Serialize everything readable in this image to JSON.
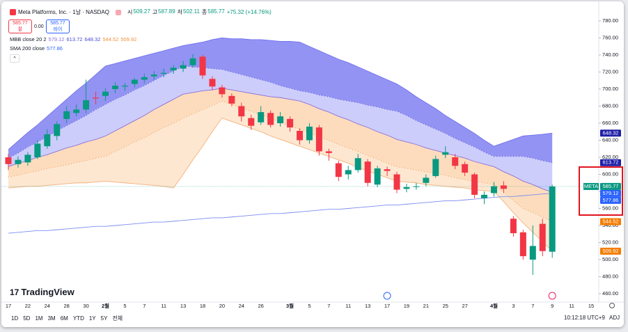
{
  "header": {
    "title": "Meta Platforms, Inc. · 1날 · NASDAQ",
    "ohlc_labels": [
      "시",
      "고",
      "저",
      "종"
    ],
    "change": "+75.32 (+14.76%)",
    "sell_label": "팔",
    "spread": "0.00",
    "buy_label": "바이",
    "mbb_label": "MBB close 20 2",
    "sma_label": "SMA 200 close",
    "ticker": "META"
  },
  "footer": {
    "brand": "TradingView",
    "timeframes": [
      "1D",
      "5D",
      "1M",
      "3M",
      "6M",
      "YTD",
      "1Y",
      "5Y",
      "전체"
    ],
    "clock": "10:12:18 UTC+9",
    "adj": "ADJ"
  },
  "chart_data": {
    "type": "candlestick",
    "categories": [
      "17",
      null,
      "22",
      null,
      "24",
      null,
      "28",
      null,
      "30",
      null,
      "2월",
      null,
      "5",
      null,
      "7",
      null,
      "11",
      null,
      "13",
      null,
      "18",
      null,
      "20",
      null,
      "24",
      null,
      "26",
      null,
      null,
      "3월",
      null,
      "5",
      null,
      "7",
      null,
      "11",
      null,
      "13",
      null,
      "17",
      null,
      "19",
      null,
      "21",
      null,
      "25",
      null,
      "27",
      null,
      null,
      "4월",
      null,
      "3",
      null,
      "7",
      null,
      "9"
    ],
    "future_ticks": [
      "11",
      "15"
    ],
    "open": [
      620,
      612,
      614,
      620,
      633,
      645,
      665,
      672,
      676,
      690,
      692,
      700,
      703,
      706,
      711,
      715,
      718,
      722,
      724,
      728,
      738,
      712,
      702,
      692,
      680,
      666,
      661,
      672,
      660,
      665,
      651,
      640,
      655,
      627,
      613,
      600,
      605,
      615,
      588,
      606,
      600,
      583,
      586,
      590,
      598,
      623,
      620,
      612,
      600,
      572,
      578,
      587,
      548,
      532,
      500,
      542,
      509.27
    ],
    "high": [
      624,
      621,
      626,
      640,
      653,
      662,
      680,
      682,
      711,
      697,
      701,
      708,
      707,
      713,
      718,
      721,
      724,
      728,
      733,
      741,
      740,
      715,
      705,
      695,
      684,
      670,
      680,
      675,
      673,
      668,
      654,
      660,
      658,
      630,
      616,
      610,
      624,
      618,
      610,
      609,
      603,
      589,
      590,
      600,
      622,
      633,
      624,
      615,
      602,
      580,
      591,
      592,
      551,
      535,
      540,
      548,
      587.89
    ],
    "low": [
      605,
      608,
      610,
      618,
      630,
      640,
      660,
      668,
      672,
      682,
      686,
      695,
      698,
      702,
      707,
      711,
      714,
      718,
      720,
      725,
      712,
      699,
      690,
      680,
      662,
      652,
      658,
      655,
      656,
      650,
      635,
      636,
      622,
      616,
      592,
      594,
      602,
      586,
      585,
      598,
      578,
      579,
      582,
      586,
      596,
      619,
      606,
      598,
      572,
      565,
      574,
      578,
      527,
      500,
      482,
      504,
      502.11
    ],
    "close": [
      612,
      617,
      623,
      636,
      647,
      659,
      674,
      676,
      687,
      689,
      697,
      704,
      704,
      711,
      714,
      717,
      719,
      725,
      728,
      736,
      716,
      703,
      694,
      683,
      668,
      657,
      673,
      658,
      668,
      655,
      640,
      656,
      627,
      625,
      597,
      605,
      619,
      590,
      607,
      604,
      582,
      585,
      586,
      596,
      618,
      626,
      610,
      602,
      576,
      576,
      586,
      583,
      531,
      504,
      516,
      510,
      585.77
    ],
    "up_color": "#089981",
    "down_color": "#f23645",
    "series": [
      {
        "color": "#7070ee",
        "fill": "#8787f3",
        "values": [
          629,
          639,
          649,
          658,
          668,
          678,
          688,
          698,
          707,
          717,
          727,
          730,
          733,
          736,
          739,
          742,
          745,
          748,
          751,
          753,
          755,
          758,
          760,
          759,
          759,
          758,
          758,
          757,
          756,
          756,
          755,
          750,
          745,
          740,
          735,
          731,
          726,
          721,
          716,
          711,
          706,
          699,
          691,
          684,
          677,
          669,
          662,
          655,
          648,
          640,
          633,
          637,
          641,
          645,
          646,
          647,
          648.32
        ]
      },
      {
        "color": "#4a4ad0",
        "fill": "#c6c8fb",
        "dashed": true,
        "values": [
          619,
          625,
          632,
          638,
          644,
          651,
          657,
          663,
          669,
          676,
          682,
          688,
          693,
          699,
          704,
          710,
          716,
          721,
          727,
          726,
          725,
          724,
          723,
          720,
          717,
          714,
          711,
          708,
          704,
          701,
          698,
          696,
          693,
          691,
          688,
          686,
          684,
          681,
          679,
          676,
          674,
          669,
          663,
          658,
          653,
          648,
          642,
          637,
          632,
          626,
          621,
          621,
          621,
          621,
          619,
          616,
          613.72
        ]
      },
      {
        "color": "#8a6fd8",
        "fill": "#fdd8b6",
        "values": [
          609,
          613,
          616,
          620,
          623,
          627,
          631,
          634,
          638,
          641,
          645,
          651,
          657,
          663,
          669,
          676,
          682,
          688,
          694,
          696,
          698,
          699,
          701,
          699,
          697,
          695,
          693,
          691,
          690,
          688,
          686,
          682,
          677,
          673,
          668,
          664,
          659,
          655,
          650,
          646,
          641,
          638,
          635,
          631,
          628,
          625,
          622,
          619,
          615,
          612,
          609,
          603,
          598,
          592,
          588,
          583,
          579.12
        ]
      },
      {
        "color": "#f0903c",
        "fill": "#fde4cc",
        "dashed": true,
        "values": [
          597,
          599,
          602,
          604,
          607,
          609,
          611,
          614,
          616,
          619,
          621,
          627,
          632,
          638,
          643,
          649,
          655,
          660,
          666,
          671,
          676,
          681,
          686,
          682,
          678,
          674,
          670,
          666,
          661,
          657,
          653,
          649,
          644,
          640,
          635,
          631,
          627,
          622,
          618,
          613,
          609,
          607,
          605,
          603,
          601,
          599,
          596,
          594,
          592,
          590,
          588,
          579,
          569,
          560,
          555,
          550,
          544.52
        ]
      },
      {
        "color": "#f5b07a",
        "values": [
          584,
          585,
          586,
          586,
          587,
          588,
          589,
          590,
          590,
          591,
          592,
          591,
          590,
          589,
          588,
          587,
          586,
          584,
          600,
          617,
          633,
          650,
          666,
          662,
          658,
          654,
          650,
          645,
          641,
          637,
          633,
          629,
          625,
          621,
          617,
          613,
          608,
          604,
          600,
          596,
          592,
          591,
          590,
          588,
          587,
          586,
          585,
          584,
          582,
          581,
          580,
          568,
          555,
          543,
          532,
          521,
          509.92
        ]
      },
      {
        "color": "#7b8cf0",
        "values": [
          531,
          532,
          533,
          534,
          534,
          535,
          536,
          537,
          538,
          539,
          539,
          540,
          541,
          542,
          543,
          544,
          544,
          545,
          546,
          547,
          548,
          549,
          549,
          550,
          551,
          552,
          553,
          554,
          554,
          555,
          556,
          557,
          558,
          559,
          559,
          560,
          561,
          562,
          563,
          564,
          564,
          565,
          566,
          567,
          568,
          569,
          569,
          570,
          571,
          572,
          573,
          574,
          574,
          575,
          576,
          577,
          577.86
        ]
      }
    ],
    "ylim": [
      460,
      780
    ],
    "yticks": [
      {
        "value": 460,
        "label": "460.00"
      },
      {
        "value": 480,
        "label": "480.00"
      },
      {
        "value": 500,
        "label": "500.00"
      },
      {
        "value": 520,
        "label": "520.00"
      },
      {
        "value": 540,
        "label": "540.00"
      },
      {
        "value": 560,
        "label": "560.00"
      },
      {
        "value": 580,
        "label": "580.00"
      },
      {
        "value": 600,
        "label": "600.00"
      },
      {
        "value": 620,
        "label": "620.00"
      },
      {
        "value": 640,
        "label": "640.00"
      },
      {
        "value": 660,
        "label": "660.00"
      },
      {
        "value": 680,
        "label": "680.00"
      },
      {
        "value": 700,
        "label": "700.00"
      },
      {
        "value": 720,
        "label": "720.00"
      },
      {
        "value": 740,
        "label": "740.00"
      },
      {
        "value": 760,
        "label": "760.00"
      },
      {
        "value": 780,
        "label": "780.00"
      }
    ]
  }
}
